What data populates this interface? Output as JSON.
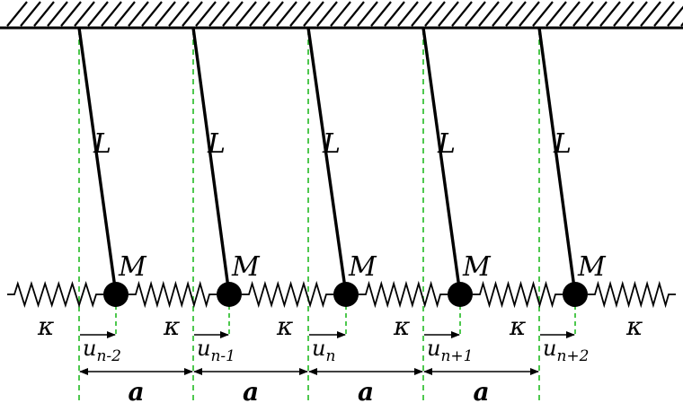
{
  "labels": {
    "length": "L",
    "mass": "M",
    "spring_constant": "κ",
    "spacing": "a",
    "displacement_symbol": "u"
  },
  "pendulums": [
    {
      "subscript": "n-2"
    },
    {
      "subscript": "n-1"
    },
    {
      "subscript": "n"
    },
    {
      "subscript": "n+1"
    },
    {
      "subscript": "n+2"
    }
  ],
  "colors": {
    "line": "#000000",
    "guide": "#22bb22"
  }
}
